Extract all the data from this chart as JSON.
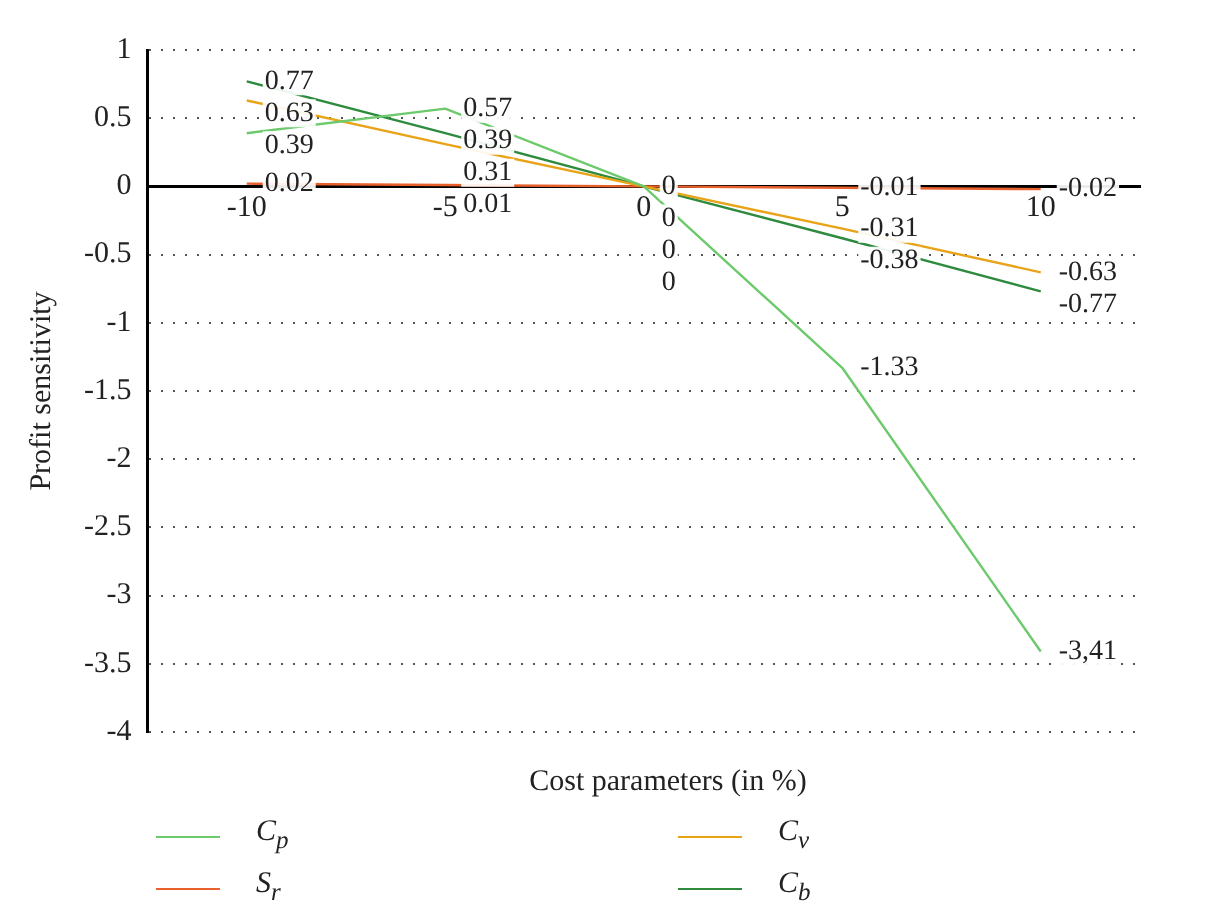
{
  "chart_data": {
    "type": "line",
    "xlabel": "Cost parameters (in %)",
    "ylabel": "Profit sensitivity",
    "categories": [
      "-10",
      "-5",
      "0",
      "5",
      "10"
    ],
    "ylim": [
      -4,
      1
    ],
    "yticks": [
      -4,
      -3.5,
      -3,
      -2.5,
      -2,
      -1.5,
      -1,
      -0.5,
      0,
      0.5,
      1
    ],
    "grid": "y",
    "legend": "bottom",
    "series": [
      {
        "name": "C$_{p}$",
        "color": "#6cc96c",
        "values": [
          0.39,
          0.57,
          0,
          -1.33,
          -3.41
        ],
        "value_labels": [
          "0.39",
          "0.57",
          "0",
          "-1.33",
          "-3,41"
        ]
      },
      {
        "name": "C$_{v}$",
        "color": "#e8a317",
        "values": [
          0.63,
          0.31,
          0,
          -0.31,
          -0.63
        ],
        "value_labels": [
          "0.63",
          "0.31",
          "0",
          "-0.31",
          "-0.63"
        ]
      },
      {
        "name": "S$_{r}$",
        "color": "#e8602c",
        "values": [
          0.02,
          0.01,
          0,
          -0.01,
          -0.02
        ],
        "value_labels": [
          "0.02",
          "0.01",
          "0",
          "-0.01",
          "-0.02"
        ]
      },
      {
        "name": "C$_{b}$",
        "color": "#2e8b3e",
        "values": [
          0.77,
          0.39,
          0,
          -0.38,
          -0.77
        ],
        "value_labels": [
          "0.77",
          "0.39",
          "0",
          "-0.38",
          "-0.77"
        ]
      }
    ]
  }
}
